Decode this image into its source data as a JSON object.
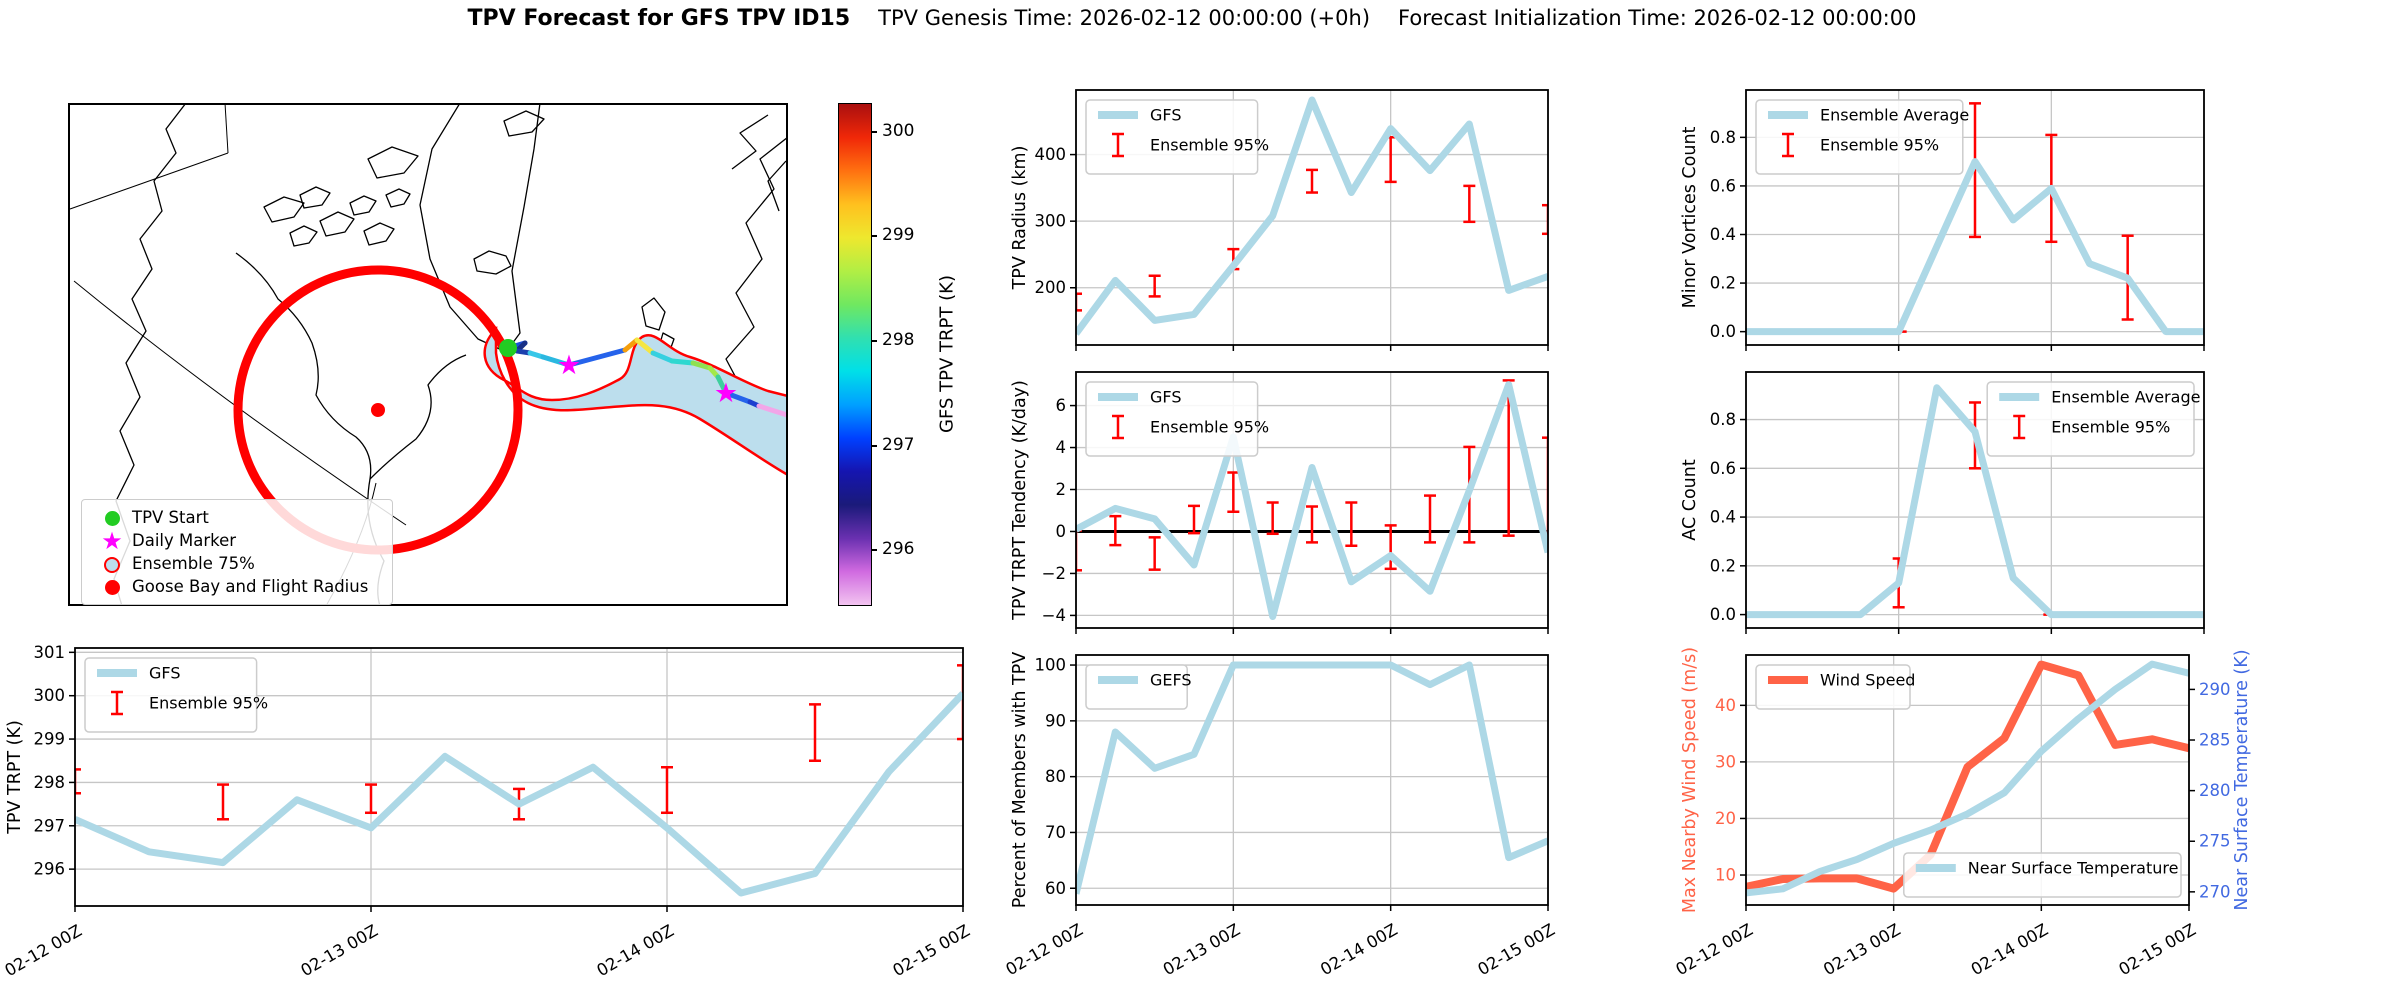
{
  "title": {
    "main": "TPV Forecast for GFS TPV ID15",
    "genesis": "TPV Genesis Time: 2026-02-12 00:00:00 (+0h)",
    "init": "Forecast Initialization Time: 2026-02-12 00:00:00"
  },
  "palette": {
    "gfs": "#ADD8E6",
    "error": "#FF0000",
    "wind": "#FF6347",
    "right_axis": "#4169E1",
    "grid": "#c6c6c6",
    "frame": "#000000",
    "track_green": "#22cc22",
    "magenta": "#FF00FF",
    "red": "#FF0000",
    "map_fill": "#bcdeed"
  },
  "map": {
    "legend": {
      "items": [
        {
          "label": "TPV Start",
          "marker": "green-dot"
        },
        {
          "label": "Daily Marker",
          "marker": "magenta-star"
        },
        {
          "label": "Ensemble 75%",
          "marker": "ensemble-circle"
        },
        {
          "label": "Goose Bay and Flight Radius",
          "marker": "red-dot"
        }
      ]
    },
    "colorbar": {
      "label": "GFS TPV TRPT (K)",
      "ticks": [
        "300",
        "299",
        "298",
        "297",
        "296"
      ],
      "gradient_bottom_to_top": [
        "#f2c4f0",
        "#d06ae0",
        "#6a30b0",
        "#1a1a7a",
        "#1515b0",
        "#0040ff",
        "#00a0ff",
        "#00e0e8",
        "#30e0b0",
        "#70e860",
        "#b2ee44",
        "#eee82e",
        "#ffc01e",
        "#ff7010",
        "#f02808",
        "#aa0f0f"
      ]
    },
    "track": {
      "points": [
        [
          440,
          245
        ],
        [
          457,
          240
        ],
        [
          449,
          248
        ],
        [
          462,
          250
        ],
        [
          475,
          254
        ],
        [
          501,
          262
        ],
        [
          557,
          247
        ],
        [
          569,
          237
        ],
        [
          585,
          250
        ],
        [
          604,
          258
        ],
        [
          625,
          260
        ],
        [
          642,
          265
        ],
        [
          650,
          274
        ],
        [
          658,
          290
        ],
        [
          682,
          299
        ],
        [
          691,
          303
        ],
        [
          719,
          312
        ]
      ],
      "segment_colors": [
        "#1d4ed8",
        "#172f86",
        "#1b3fae",
        "#38c7e8",
        "#2bb8e0",
        "#2563eb",
        "#f59e0b",
        "#f5e642",
        "#35d0e0",
        "#2fd8d0",
        "#8fe052",
        "#a4e84a",
        "#3ecf9e",
        "#2563eb",
        "#1d3fcf",
        "#f2a6e8"
      ],
      "start": [
        440,
        245
      ],
      "daily_markers": [
        [
          501,
          262
        ],
        [
          658,
          290
        ]
      ],
      "goose_bay": [
        310,
        307
      ],
      "flight_radius": 140
    }
  },
  "time_axis": {
    "sample_hours": [
      0,
      6,
      12,
      18,
      24,
      30,
      36,
      42,
      48,
      54,
      60,
      66,
      72
    ],
    "hours": [
      0,
      24,
      48,
      72
    ],
    "labels": [
      "02-12 00Z",
      "02-13 00Z",
      "02-14 00Z",
      "02-15 00Z"
    ],
    "total_hours": 72
  },
  "chart_data": [
    {
      "id": "tpv-trpt",
      "type": "line",
      "ylabel": "TPV TRPT (K)",
      "ylim": [
        295.15,
        301.1
      ],
      "yticks": [
        296,
        297,
        298,
        299,
        300,
        301
      ],
      "ytick_labels": [
        "296",
        "297",
        "298",
        "299",
        "300",
        "301"
      ],
      "series": [
        {
          "name": "GFS",
          "color": "gfs",
          "width": 7,
          "values": [
            297.15,
            296.4,
            296.15,
            297.6,
            296.95,
            298.6,
            297.5,
            298.35,
            296.95,
            295.45,
            295.9,
            298.25,
            300.05
          ]
        }
      ],
      "error_bars": {
        "color": "error",
        "hours": [
          0,
          12,
          24,
          36,
          48,
          60,
          72
        ],
        "ranges": [
          [
            297.75,
            298.3
          ],
          [
            297.15,
            297.95
          ],
          [
            297.3,
            297.95
          ],
          [
            297.15,
            297.85
          ],
          [
            297.3,
            298.35
          ],
          [
            298.5,
            299.8
          ],
          [
            299.0,
            300.7
          ]
        ]
      },
      "legend": [
        {
          "pos": "top-left",
          "entries": [
            {
              "label": "GFS",
              "glyph": "line",
              "color": "gfs"
            },
            {
              "label": "Ensemble 95%",
              "glyph": "errorbar",
              "color": "error"
            }
          ]
        }
      ],
      "show_x_labels": true
    },
    {
      "id": "tpv-radius",
      "type": "line",
      "ylabel": "TPV Radius (km)",
      "ylim": [
        114,
        497
      ],
      "yticks": [
        200,
        300,
        400
      ],
      "ytick_labels": [
        "200",
        "300",
        "400"
      ],
      "series": [
        {
          "name": "GFS",
          "color": "gfs",
          "width": 7,
          "values": [
            131,
            211,
            151,
            160,
            233,
            308,
            482,
            343,
            439,
            376,
            446,
            196,
            217
          ]
        }
      ],
      "error_bars": {
        "color": "error",
        "hours": [
          0,
          12,
          24,
          36,
          48,
          60,
          72
        ],
        "ranges": [
          [
            166,
            191
          ],
          [
            187,
            218
          ],
          [
            228,
            258
          ],
          [
            343,
            377
          ],
          [
            359,
            426
          ],
          [
            299,
            353
          ],
          [
            281,
            324
          ]
        ]
      },
      "legend": [
        {
          "pos": "top-left",
          "entries": [
            {
              "label": "GFS",
              "glyph": "line",
              "color": "gfs"
            },
            {
              "label": "Ensemble 95%",
              "glyph": "errorbar",
              "color": "error"
            }
          ]
        }
      ],
      "show_x_labels": false
    },
    {
      "id": "tendency",
      "type": "line",
      "ylabel": "TPV TRPT Tendency (K/day)",
      "ylim": [
        -4.6,
        7.6
      ],
      "yticks": [
        -4,
        -2,
        0,
        2,
        4,
        6
      ],
      "ytick_labels": [
        "−4",
        "−2",
        "0",
        "2",
        "4",
        "6"
      ],
      "zero_line": true,
      "series": [
        {
          "name": "GFS",
          "color": "gfs",
          "width": 7,
          "values": [
            0.1,
            1.1,
            0.6,
            -1.6,
            4.5,
            -4.05,
            3.05,
            -2.4,
            -1.15,
            -2.85,
            1.95,
            7.0,
            -1.0
          ]
        }
      ],
      "error_bars": {
        "color": "error",
        "hours": [
          0,
          6,
          12,
          18,
          24,
          30,
          36,
          42,
          48,
          54,
          60,
          66,
          72
        ],
        "ranges": [
          [
            -1.85,
            0.05
          ],
          [
            -0.65,
            0.73
          ],
          [
            -1.82,
            -0.28
          ],
          [
            -0.08,
            1.22
          ],
          [
            0.94,
            2.81
          ],
          [
            -0.11,
            1.38
          ],
          [
            -0.52,
            1.19
          ],
          [
            -0.68,
            1.38
          ],
          [
            -1.78,
            0.29
          ],
          [
            -0.52,
            1.71
          ],
          [
            -0.52,
            4.03
          ],
          [
            -0.2,
            7.2
          ],
          [
            -0.11,
            4.47
          ]
        ]
      },
      "legend": [
        {
          "pos": "top-left",
          "entries": [
            {
              "label": "GFS",
              "glyph": "line",
              "color": "gfs"
            },
            {
              "label": "Ensemble 95%",
              "glyph": "errorbar",
              "color": "error"
            }
          ]
        }
      ],
      "show_x_labels": false
    },
    {
      "id": "percent",
      "type": "line",
      "ylabel": "Percent of Members with TPV",
      "ylim": [
        57,
        101.8
      ],
      "yticks": [
        60,
        70,
        80,
        90,
        100
      ],
      "ytick_labels": [
        "60",
        "70",
        "80",
        "90",
        "100"
      ],
      "series": [
        {
          "name": "GEFS",
          "color": "gfs",
          "width": 7,
          "values": [
            59,
            88,
            81.5,
            84,
            100,
            100,
            100,
            100,
            100,
            96.5,
            100,
            65.5,
            68.5
          ]
        }
      ],
      "legend": [
        {
          "pos": "top-left",
          "entries": [
            {
              "label": "GEFS",
              "glyph": "line",
              "color": "gfs"
            }
          ]
        }
      ],
      "show_x_labels": true
    },
    {
      "id": "minor-vortices",
      "type": "line",
      "ylabel": "Minor Vortices Count",
      "ylim": [
        -0.055,
        0.995
      ],
      "yticks": [
        0.0,
        0.2,
        0.4,
        0.6,
        0.8
      ],
      "ytick_labels": [
        "0.0",
        "0.2",
        "0.4",
        "0.6",
        "0.8"
      ],
      "series": [
        {
          "name": "Ensemble Average",
          "color": "gfs",
          "width": 7,
          "values": [
            0,
            0,
            0,
            0,
            0,
            0.35,
            0.7,
            0.46,
            0.59,
            0.28,
            0.22,
            0,
            0
          ]
        }
      ],
      "error_bars": {
        "color": "error",
        "hours": [
          0,
          12,
          24,
          36,
          48,
          60,
          72
        ],
        "ranges": [
          [
            0,
            0
          ],
          [
            0,
            0
          ],
          [
            0,
            0
          ],
          [
            0.39,
            0.94
          ],
          [
            0.37,
            0.81
          ],
          [
            0.05,
            0.395
          ],
          [
            0,
            0
          ]
        ]
      },
      "legend": [
        {
          "pos": "top-left",
          "entries": [
            {
              "label": "Ensemble Average",
              "glyph": "line",
              "color": "gfs"
            },
            {
              "label": "Ensemble 95%",
              "glyph": "errorbar",
              "color": "error"
            }
          ]
        }
      ],
      "show_x_labels": false
    },
    {
      "id": "ac-count",
      "type": "line",
      "ylabel": "AC Count",
      "ylim": [
        -0.055,
        0.995
      ],
      "yticks": [
        0.0,
        0.2,
        0.4,
        0.6,
        0.8
      ],
      "ytick_labels": [
        "0.0",
        "0.2",
        "0.4",
        "0.6",
        "0.8"
      ],
      "series": [
        {
          "name": "Ensemble Average",
          "color": "gfs",
          "width": 7,
          "values": [
            0,
            0,
            0,
            0,
            0.13,
            0.93,
            0.75,
            0.15,
            0,
            0,
            0,
            0,
            0
          ]
        }
      ],
      "error_bars": {
        "color": "error",
        "hours": [
          0,
          12,
          24,
          36,
          48,
          60,
          72
        ],
        "ranges": [
          [
            0,
            0
          ],
          [
            0,
            0
          ],
          [
            0.03,
            0.23
          ],
          [
            0.6,
            0.87
          ],
          [
            0,
            0
          ],
          [
            0,
            0
          ],
          [
            0,
            0
          ]
        ]
      },
      "legend": [
        {
          "pos": "top-right",
          "entries": [
            {
              "label": "Ensemble Average",
              "glyph": "line",
              "color": "gfs"
            },
            {
              "label": "Ensemble 95%",
              "glyph": "errorbar",
              "color": "error"
            }
          ]
        }
      ],
      "show_x_labels": false
    },
    {
      "id": "wind-temp",
      "type": "line",
      "ylabel": "Max Nearby Wind Speed (m/s)",
      "ylabel_color": "wind",
      "ytick_color": "wind",
      "ylim": [
        4.7,
        48.9
      ],
      "yticks": [
        10,
        20,
        30,
        40
      ],
      "ytick_labels": [
        "10",
        "20",
        "30",
        "40"
      ],
      "series": [
        {
          "name": "Wind Speed",
          "color": "wind",
          "width": 8,
          "values": [
            7.9,
            9.3,
            9.4,
            9.4,
            7.6,
            13.6,
            29.1,
            34.2,
            47.2,
            45.3,
            33.0,
            34.0,
            32.4
          ]
        },
        {
          "name": "Near Surface Temperature",
          "color": "gfs",
          "width": 7,
          "axis": "right",
          "values": [
            269.9,
            270.3,
            272.0,
            273.2,
            274.8,
            276.1,
            277.7,
            279.8,
            283.9,
            287.1,
            290.0,
            292.5,
            291.6
          ]
        }
      ],
      "right": {
        "ylabel": "Near Surface Temperature (K)",
        "color": "right_axis",
        "ylim": [
          268.7,
          293.4
        ],
        "yticks": [
          270,
          275,
          280,
          285,
          290
        ],
        "ytick_labels": [
          "270",
          "275",
          "280",
          "285",
          "290"
        ]
      },
      "legend": [
        {
          "pos": "top-left",
          "entries": [
            {
              "label": "Wind Speed",
              "glyph": "line",
              "color": "wind"
            }
          ]
        },
        {
          "pos": "bottom-right",
          "entries": [
            {
              "label": "Near Surface Temperature",
              "glyph": "line",
              "color": "gfs"
            }
          ]
        }
      ],
      "show_x_labels": true
    }
  ]
}
